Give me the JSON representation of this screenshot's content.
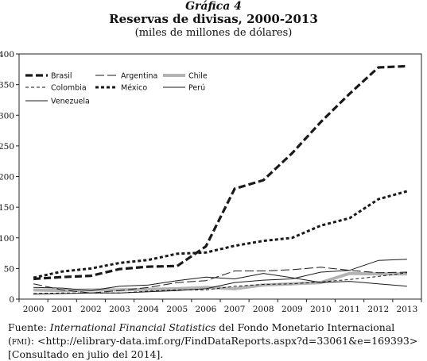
{
  "heading": {
    "label": "Gráfica 4",
    "title": "Reservas de divisas, 2000-2013",
    "subtitle": "(miles de millones de dólares)"
  },
  "source": {
    "prefix": "Fuente: ",
    "publication": "International Financial Statistics",
    "middle": " del Fondo Monetario Internacional (",
    "abbr": "fmi",
    "rest": "): <http://elibrary-data.imf.org/FindDataReports.aspx?d=33061&e=169393> [Consultado en julio del 2014]."
  },
  "chart_data": {
    "type": "line",
    "title": "Reservas de divisas, 2000-2013",
    "subtitle": "(miles de millones de dólares)",
    "xlabel": "",
    "ylabel": "",
    "x": [
      "2000",
      "2001",
      "2002",
      "2003",
      "2004",
      "2005",
      "2006",
      "2007",
      "2008",
      "2009",
      "2010",
      "2011",
      "2012",
      "2013"
    ],
    "ylim": [
      0,
      400
    ],
    "yticks": [
      0,
      50,
      100,
      150,
      200,
      250,
      300,
      350,
      400
    ],
    "grid": false,
    "legend_position": "top-left",
    "series": [
      {
        "name": "Brasil",
        "style": "thick-dash",
        "color": "#1a1a1a",
        "values": [
          33,
          36,
          38,
          49,
          53,
          54,
          86,
          180,
          194,
          238,
          289,
          335,
          378,
          380
        ]
      },
      {
        "name": "Argentina",
        "style": "long-dash",
        "color": "#1a1a1a",
        "values": [
          25,
          15,
          10,
          14,
          19,
          27,
          30,
          46,
          46,
          48,
          52,
          47,
          43,
          44
        ]
      },
      {
        "name": "Chile",
        "style": "thick-gray",
        "color": "#b3b3b3",
        "values": [
          15,
          14,
          15,
          15,
          16,
          17,
          19,
          17,
          23,
          25,
          27,
          42,
          41,
          41
        ]
      },
      {
        "name": "Colombia",
        "style": "short-dash",
        "color": "#1a1a1a",
        "values": [
          9,
          10,
          10,
          10,
          13,
          15,
          15,
          21,
          24,
          25,
          28,
          32,
          37,
          43
        ]
      },
      {
        "name": "México",
        "style": "thick-dot",
        "color": "#1a1a1a",
        "values": [
          35,
          45,
          50,
          59,
          64,
          74,
          76,
          87,
          95,
          100,
          120,
          132,
          163,
          176
        ]
      },
      {
        "name": "Perú",
        "style": "solid",
        "color": "#1a1a1a",
        "values": [
          8,
          9,
          10,
          10,
          12,
          14,
          17,
          27,
          31,
          33,
          44,
          47,
          63,
          65
        ]
      },
      {
        "name": "Venezuela",
        "style": "solid",
        "color": "#1a1a1a",
        "values": [
          19,
          18,
          14,
          21,
          23,
          30,
          36,
          33,
          42,
          35,
          27,
          29,
          25,
          21
        ]
      }
    ]
  }
}
